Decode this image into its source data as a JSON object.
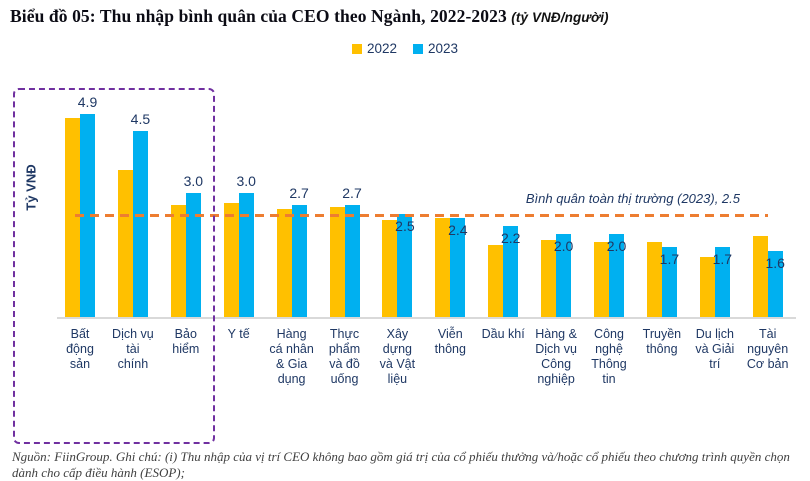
{
  "title": {
    "text": "Biểu đồ 05: Thu nhập bình quân của CEO theo Ngành, 2022-2023",
    "unit_note": "(tỷ VNĐ/người)"
  },
  "legend": {
    "items": [
      {
        "label": "2022",
        "color": "#FFC000"
      },
      {
        "label": "2023",
        "color": "#00B0F0"
      }
    ]
  },
  "chart_data": {
    "type": "bar",
    "title": "Thu nhập bình quân của CEO theo Ngành, 2022-2023",
    "xlabel": "",
    "ylabel": "Tỷ VNĐ",
    "ylim": [
      0,
      5.2
    ],
    "grid": false,
    "legend_position": "top-center",
    "categories": [
      "Bất động sản",
      "Dịch vụ tài chính",
      "Bảo hiểm",
      "Y tế",
      "Hàng cá nhân & Gia dụng",
      "Thực phẩm và đồ uống",
      "Xây dựng và Vật liệu",
      "Viễn thông",
      "Dầu khí",
      "Hàng & Dịch vụ Công nghiệp",
      "Công nghệ Thông tin",
      "Truyền thông",
      "Du lịch và Giải trí",
      "Tài nguyên Cơ bản"
    ],
    "category_label_lines": [
      [
        "Bất",
        "động",
        "sản"
      ],
      [
        "Dịch vụ",
        "tài",
        "chính"
      ],
      [
        "Bảo",
        "hiểm"
      ],
      [
        "Y tế"
      ],
      [
        "Hàng",
        "cá nhân",
        "& Gia",
        "dụng"
      ],
      [
        "Thực",
        "phẩm",
        "và đồ",
        "uống"
      ],
      [
        "Xây",
        "dựng",
        "và Vật",
        "liệu"
      ],
      [
        "Viễn",
        "thông"
      ],
      [
        "Dầu khí"
      ],
      [
        "Hàng &",
        "Dịch vụ",
        "Công",
        "nghiệp"
      ],
      [
        "Công",
        "nghệ",
        "Thông",
        "tin"
      ],
      [
        "Truyền",
        "thông"
      ],
      [
        "Du lịch",
        "và Giải",
        "trí"
      ],
      [
        "Tài",
        "nguyên",
        "Cơ bản"
      ]
    ],
    "series": [
      {
        "name": "2022",
        "color": "#FFC000",
        "values": [
          4.8,
          3.55,
          2.7,
          2.75,
          2.6,
          2.65,
          2.35,
          2.4,
          1.75,
          1.85,
          1.8,
          1.8,
          1.45,
          1.95
        ]
      },
      {
        "name": "2023",
        "color": "#00B0F0",
        "values": [
          4.9,
          4.5,
          3.0,
          3.0,
          2.7,
          2.7,
          2.5,
          2.4,
          2.2,
          2.0,
          2.0,
          1.7,
          1.7,
          1.6
        ],
        "data_labels": [
          "4.9",
          "4.5",
          "3.0",
          "3.0",
          "2.7",
          "2.7",
          "2.5",
          "2.4",
          "2.2",
          "2.0",
          "2.0",
          "1.7",
          "1.7",
          "1.6"
        ]
      }
    ],
    "reference_line": {
      "value": 2.5,
      "label": "Bình quân toàn thị trường (2023), 2.5",
      "color": "#ED7D31"
    },
    "highlight_box": {
      "from_category": "Bất động sản",
      "to_category": "Bảo hiểm",
      "color": "#7030A0"
    }
  },
  "colors": {
    "bar_2022": "#FFC000",
    "bar_2023": "#00B0F0",
    "text_navy": "#1F3864",
    "reference_orange": "#ED7D31",
    "highlight_purple": "#7030A0",
    "axis_gray": "#D9D9D9"
  },
  "footer": {
    "text": "Nguồn: FiinGroup. Ghi chú: (i) Thu nhập của vị trí CEO không bao gồm giá trị của cổ phiếu thưởng và/hoặc cổ phiếu theo chương trình quyền chọn dành cho cấp điều hành (ESOP);"
  }
}
